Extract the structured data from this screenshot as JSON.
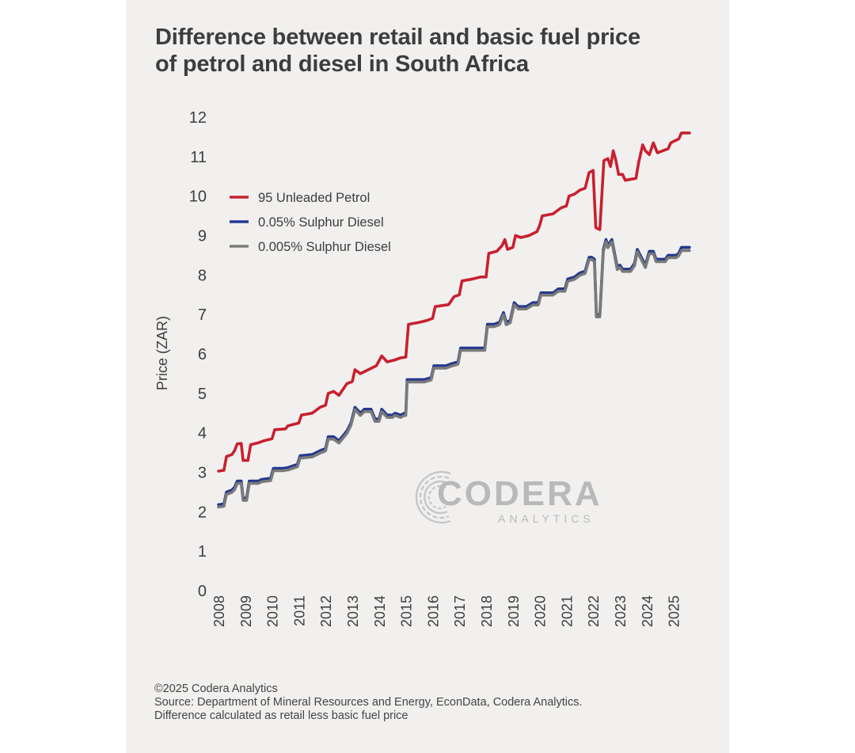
{
  "title_lines": [
    "Difference between retail and basic fuel price",
    "of petrol and diesel in South Africa"
  ],
  "footer": {
    "copyright": "©2025 Codera Analytics",
    "source": "Source: Department of Mineral Resources and Energy, EconData, Codera Analytics.",
    "note": "Difference calculated as retail less basic fuel price"
  },
  "logo": {
    "word": "CODERA",
    "sub": "ANALYTICS"
  },
  "colors": {
    "petrol": "#c8202f",
    "diesel_005": "#23388f",
    "diesel_0005": "#7a7a7a",
    "axis_text": "#3d3d3d",
    "background": "#f1f0ef"
  },
  "chart_data": {
    "type": "line",
    "title": "Difference between retail and basic fuel price of petrol and diesel in South Africa",
    "xlabel": "",
    "ylabel": "Price (ZAR)",
    "ylim": [
      0,
      12
    ],
    "y_ticks": [
      0,
      1,
      2,
      3,
      4,
      5,
      6,
      7,
      8,
      9,
      10,
      11,
      12
    ],
    "xlim": [
      2008,
      2025.75
    ],
    "x_ticks": [
      "2008",
      "2009",
      "2010",
      "2011",
      "2012",
      "2013",
      "2014",
      "2015",
      "2016",
      "2017",
      "2018",
      "2019",
      "2020",
      "2021",
      "2022",
      "2023",
      "2024",
      "2025"
    ],
    "grid": false,
    "legend": "top-left",
    "series": [
      {
        "name": "95 Unleaded Petrol",
        "points": [
          [
            2008.0,
            3.03
          ],
          [
            2008.2,
            3.05
          ],
          [
            2008.3,
            3.4
          ],
          [
            2008.5,
            3.45
          ],
          [
            2008.6,
            3.55
          ],
          [
            2008.7,
            3.72
          ],
          [
            2008.85,
            3.73
          ],
          [
            2008.92,
            3.3
          ],
          [
            2009.1,
            3.3
          ],
          [
            2009.2,
            3.7
          ],
          [
            2009.5,
            3.75
          ],
          [
            2009.7,
            3.8
          ],
          [
            2010.0,
            3.85
          ],
          [
            2010.1,
            4.08
          ],
          [
            2010.5,
            4.1
          ],
          [
            2010.6,
            4.18
          ],
          [
            2011.0,
            4.25
          ],
          [
            2011.1,
            4.45
          ],
          [
            2011.5,
            4.5
          ],
          [
            2011.8,
            4.65
          ],
          [
            2012.0,
            4.7
          ],
          [
            2012.1,
            5.0
          ],
          [
            2012.3,
            5.05
          ],
          [
            2012.5,
            4.95
          ],
          [
            2012.8,
            5.25
          ],
          [
            2013.0,
            5.3
          ],
          [
            2013.1,
            5.6
          ],
          [
            2013.3,
            5.5
          ],
          [
            2013.6,
            5.6
          ],
          [
            2013.9,
            5.7
          ],
          [
            2014.1,
            5.95
          ],
          [
            2014.3,
            5.8
          ],
          [
            2014.6,
            5.85
          ],
          [
            2014.8,
            5.9
          ],
          [
            2015.0,
            5.92
          ],
          [
            2015.1,
            6.75
          ],
          [
            2015.5,
            6.8
          ],
          [
            2015.8,
            6.85
          ],
          [
            2016.0,
            6.9
          ],
          [
            2016.1,
            7.2
          ],
          [
            2016.6,
            7.25
          ],
          [
            2016.8,
            7.45
          ],
          [
            2017.0,
            7.5
          ],
          [
            2017.1,
            7.85
          ],
          [
            2017.5,
            7.9
          ],
          [
            2017.8,
            7.95
          ],
          [
            2018.0,
            7.95
          ],
          [
            2018.1,
            8.55
          ],
          [
            2018.4,
            8.6
          ],
          [
            2018.6,
            8.75
          ],
          [
            2018.7,
            8.9
          ],
          [
            2018.8,
            8.65
          ],
          [
            2019.0,
            8.7
          ],
          [
            2019.1,
            9.0
          ],
          [
            2019.3,
            8.95
          ],
          [
            2019.6,
            9.0
          ],
          [
            2019.9,
            9.1
          ],
          [
            2020.0,
            9.25
          ],
          [
            2020.1,
            9.5
          ],
          [
            2020.5,
            9.55
          ],
          [
            2020.8,
            9.7
          ],
          [
            2021.0,
            9.75
          ],
          [
            2021.1,
            10.0
          ],
          [
            2021.3,
            10.05
          ],
          [
            2021.5,
            10.15
          ],
          [
            2021.7,
            10.2
          ],
          [
            2021.85,
            10.6
          ],
          [
            2022.0,
            10.65
          ],
          [
            2022.1,
            9.2
          ],
          [
            2022.25,
            9.15
          ],
          [
            2022.4,
            10.9
          ],
          [
            2022.55,
            10.95
          ],
          [
            2022.65,
            10.75
          ],
          [
            2022.75,
            11.15
          ],
          [
            2022.85,
            10.9
          ],
          [
            2022.95,
            10.55
          ],
          [
            2023.1,
            10.55
          ],
          [
            2023.2,
            10.4
          ],
          [
            2023.6,
            10.45
          ],
          [
            2023.7,
            10.85
          ],
          [
            2023.85,
            11.3
          ],
          [
            2023.95,
            11.15
          ],
          [
            2024.1,
            11.05
          ],
          [
            2024.25,
            11.35
          ],
          [
            2024.4,
            11.1
          ],
          [
            2024.6,
            11.15
          ],
          [
            2024.8,
            11.2
          ],
          [
            2024.9,
            11.35
          ],
          [
            2025.2,
            11.45
          ],
          [
            2025.3,
            11.6
          ],
          [
            2025.6,
            11.6
          ]
        ]
      },
      {
        "name": "0.05% Sulphur Diesel",
        "points": [
          [
            2008.0,
            2.18
          ],
          [
            2008.2,
            2.2
          ],
          [
            2008.3,
            2.5
          ],
          [
            2008.5,
            2.55
          ],
          [
            2008.6,
            2.62
          ],
          [
            2008.7,
            2.78
          ],
          [
            2008.85,
            2.78
          ],
          [
            2008.92,
            2.35
          ],
          [
            2009.05,
            2.35
          ],
          [
            2009.15,
            2.78
          ],
          [
            2009.5,
            2.78
          ],
          [
            2009.6,
            2.82
          ],
          [
            2009.95,
            2.85
          ],
          [
            2010.05,
            3.1
          ],
          [
            2010.4,
            3.1
          ],
          [
            2010.6,
            3.12
          ],
          [
            2010.95,
            3.2
          ],
          [
            2011.05,
            3.42
          ],
          [
            2011.5,
            3.45
          ],
          [
            2011.8,
            3.55
          ],
          [
            2012.0,
            3.6
          ],
          [
            2012.1,
            3.9
          ],
          [
            2012.3,
            3.9
          ],
          [
            2012.5,
            3.8
          ],
          [
            2012.8,
            4.05
          ],
          [
            2012.95,
            4.25
          ],
          [
            2013.1,
            4.65
          ],
          [
            2013.3,
            4.5
          ],
          [
            2013.45,
            4.6
          ],
          [
            2013.7,
            4.6
          ],
          [
            2013.85,
            4.35
          ],
          [
            2014.0,
            4.35
          ],
          [
            2014.1,
            4.6
          ],
          [
            2014.3,
            4.45
          ],
          [
            2014.5,
            4.45
          ],
          [
            2014.6,
            4.5
          ],
          [
            2014.8,
            4.45
          ],
          [
            2014.95,
            4.5
          ],
          [
            2015.0,
            4.5
          ],
          [
            2015.05,
            5.35
          ],
          [
            2015.5,
            5.35
          ],
          [
            2015.7,
            5.35
          ],
          [
            2015.95,
            5.4
          ],
          [
            2016.05,
            5.7
          ],
          [
            2016.5,
            5.7
          ],
          [
            2016.7,
            5.75
          ],
          [
            2016.95,
            5.8
          ],
          [
            2017.05,
            6.15
          ],
          [
            2017.5,
            6.15
          ],
          [
            2017.8,
            6.15
          ],
          [
            2017.95,
            6.15
          ],
          [
            2018.05,
            6.75
          ],
          [
            2018.3,
            6.75
          ],
          [
            2018.5,
            6.8
          ],
          [
            2018.65,
            7.05
          ],
          [
            2018.75,
            6.8
          ],
          [
            2018.9,
            6.85
          ],
          [
            2019.05,
            7.3
          ],
          [
            2019.2,
            7.2
          ],
          [
            2019.5,
            7.2
          ],
          [
            2019.75,
            7.3
          ],
          [
            2019.95,
            7.3
          ],
          [
            2020.05,
            7.55
          ],
          [
            2020.5,
            7.55
          ],
          [
            2020.7,
            7.65
          ],
          [
            2020.95,
            7.65
          ],
          [
            2021.05,
            7.9
          ],
          [
            2021.3,
            7.95
          ],
          [
            2021.5,
            8.05
          ],
          [
            2021.7,
            8.1
          ],
          [
            2021.85,
            8.45
          ],
          [
            2021.95,
            8.45
          ],
          [
            2022.05,
            8.4
          ],
          [
            2022.12,
            7.0
          ],
          [
            2022.25,
            7.0
          ],
          [
            2022.38,
            8.65
          ],
          [
            2022.48,
            8.9
          ],
          [
            2022.55,
            8.75
          ],
          [
            2022.7,
            8.9
          ],
          [
            2022.8,
            8.55
          ],
          [
            2022.9,
            8.2
          ],
          [
            2023.0,
            8.25
          ],
          [
            2023.1,
            8.15
          ],
          [
            2023.4,
            8.15
          ],
          [
            2023.55,
            8.3
          ],
          [
            2023.65,
            8.65
          ],
          [
            2023.8,
            8.45
          ],
          [
            2023.95,
            8.25
          ],
          [
            2024.1,
            8.6
          ],
          [
            2024.25,
            8.6
          ],
          [
            2024.35,
            8.4
          ],
          [
            2024.7,
            8.4
          ],
          [
            2024.8,
            8.5
          ],
          [
            2025.1,
            8.5
          ],
          [
            2025.2,
            8.55
          ],
          [
            2025.3,
            8.7
          ],
          [
            2025.6,
            8.7
          ]
        ]
      },
      {
        "name": "0.005% Sulphur Diesel",
        "points": [
          [
            2008.0,
            2.12
          ],
          [
            2008.2,
            2.14
          ],
          [
            2008.3,
            2.44
          ],
          [
            2008.5,
            2.49
          ],
          [
            2008.6,
            2.56
          ],
          [
            2008.7,
            2.72
          ],
          [
            2008.85,
            2.72
          ],
          [
            2008.92,
            2.29
          ],
          [
            2009.05,
            2.29
          ],
          [
            2009.15,
            2.72
          ],
          [
            2009.5,
            2.72
          ],
          [
            2009.6,
            2.76
          ],
          [
            2009.95,
            2.79
          ],
          [
            2010.05,
            3.04
          ],
          [
            2010.4,
            3.04
          ],
          [
            2010.6,
            3.06
          ],
          [
            2010.95,
            3.14
          ],
          [
            2011.05,
            3.36
          ],
          [
            2011.5,
            3.39
          ],
          [
            2011.8,
            3.49
          ],
          [
            2012.0,
            3.54
          ],
          [
            2012.1,
            3.84
          ],
          [
            2012.3,
            3.84
          ],
          [
            2012.5,
            3.74
          ],
          [
            2012.8,
            3.99
          ],
          [
            2012.95,
            4.19
          ],
          [
            2013.1,
            4.59
          ],
          [
            2013.3,
            4.44
          ],
          [
            2013.45,
            4.54
          ],
          [
            2013.7,
            4.54
          ],
          [
            2013.85,
            4.29
          ],
          [
            2014.0,
            4.29
          ],
          [
            2014.1,
            4.54
          ],
          [
            2014.3,
            4.39
          ],
          [
            2014.5,
            4.39
          ],
          [
            2014.6,
            4.44
          ],
          [
            2014.8,
            4.39
          ],
          [
            2014.95,
            4.44
          ],
          [
            2015.0,
            4.44
          ],
          [
            2015.05,
            5.29
          ],
          [
            2015.5,
            5.29
          ],
          [
            2015.7,
            5.29
          ],
          [
            2015.95,
            5.34
          ],
          [
            2016.05,
            5.64
          ],
          [
            2016.5,
            5.64
          ],
          [
            2016.7,
            5.69
          ],
          [
            2016.95,
            5.74
          ],
          [
            2017.05,
            6.09
          ],
          [
            2017.5,
            6.09
          ],
          [
            2017.8,
            6.09
          ],
          [
            2017.95,
            6.09
          ],
          [
            2018.05,
            6.69
          ],
          [
            2018.3,
            6.69
          ],
          [
            2018.5,
            6.74
          ],
          [
            2018.65,
            6.99
          ],
          [
            2018.75,
            6.74
          ],
          [
            2018.9,
            6.79
          ],
          [
            2019.05,
            7.24
          ],
          [
            2019.2,
            7.14
          ],
          [
            2019.5,
            7.14
          ],
          [
            2019.75,
            7.24
          ],
          [
            2019.95,
            7.24
          ],
          [
            2020.05,
            7.49
          ],
          [
            2020.5,
            7.49
          ],
          [
            2020.7,
            7.59
          ],
          [
            2020.95,
            7.59
          ],
          [
            2021.05,
            7.84
          ],
          [
            2021.3,
            7.89
          ],
          [
            2021.5,
            7.99
          ],
          [
            2021.7,
            8.04
          ],
          [
            2021.85,
            8.39
          ],
          [
            2021.95,
            8.39
          ],
          [
            2022.05,
            8.34
          ],
          [
            2022.12,
            6.94
          ],
          [
            2022.25,
            6.94
          ],
          [
            2022.38,
            8.59
          ],
          [
            2022.48,
            8.84
          ],
          [
            2022.55,
            8.69
          ],
          [
            2022.7,
            8.84
          ],
          [
            2022.8,
            8.49
          ],
          [
            2022.9,
            8.14
          ],
          [
            2023.0,
            8.19
          ],
          [
            2023.1,
            8.09
          ],
          [
            2023.4,
            8.09
          ],
          [
            2023.55,
            8.24
          ],
          [
            2023.65,
            8.59
          ],
          [
            2023.8,
            8.39
          ],
          [
            2023.95,
            8.19
          ],
          [
            2024.1,
            8.54
          ],
          [
            2024.25,
            8.54
          ],
          [
            2024.35,
            8.34
          ],
          [
            2024.7,
            8.34
          ],
          [
            2024.8,
            8.44
          ],
          [
            2025.1,
            8.44
          ],
          [
            2025.2,
            8.49
          ],
          [
            2025.3,
            8.62
          ],
          [
            2025.6,
            8.62
          ]
        ]
      }
    ]
  }
}
